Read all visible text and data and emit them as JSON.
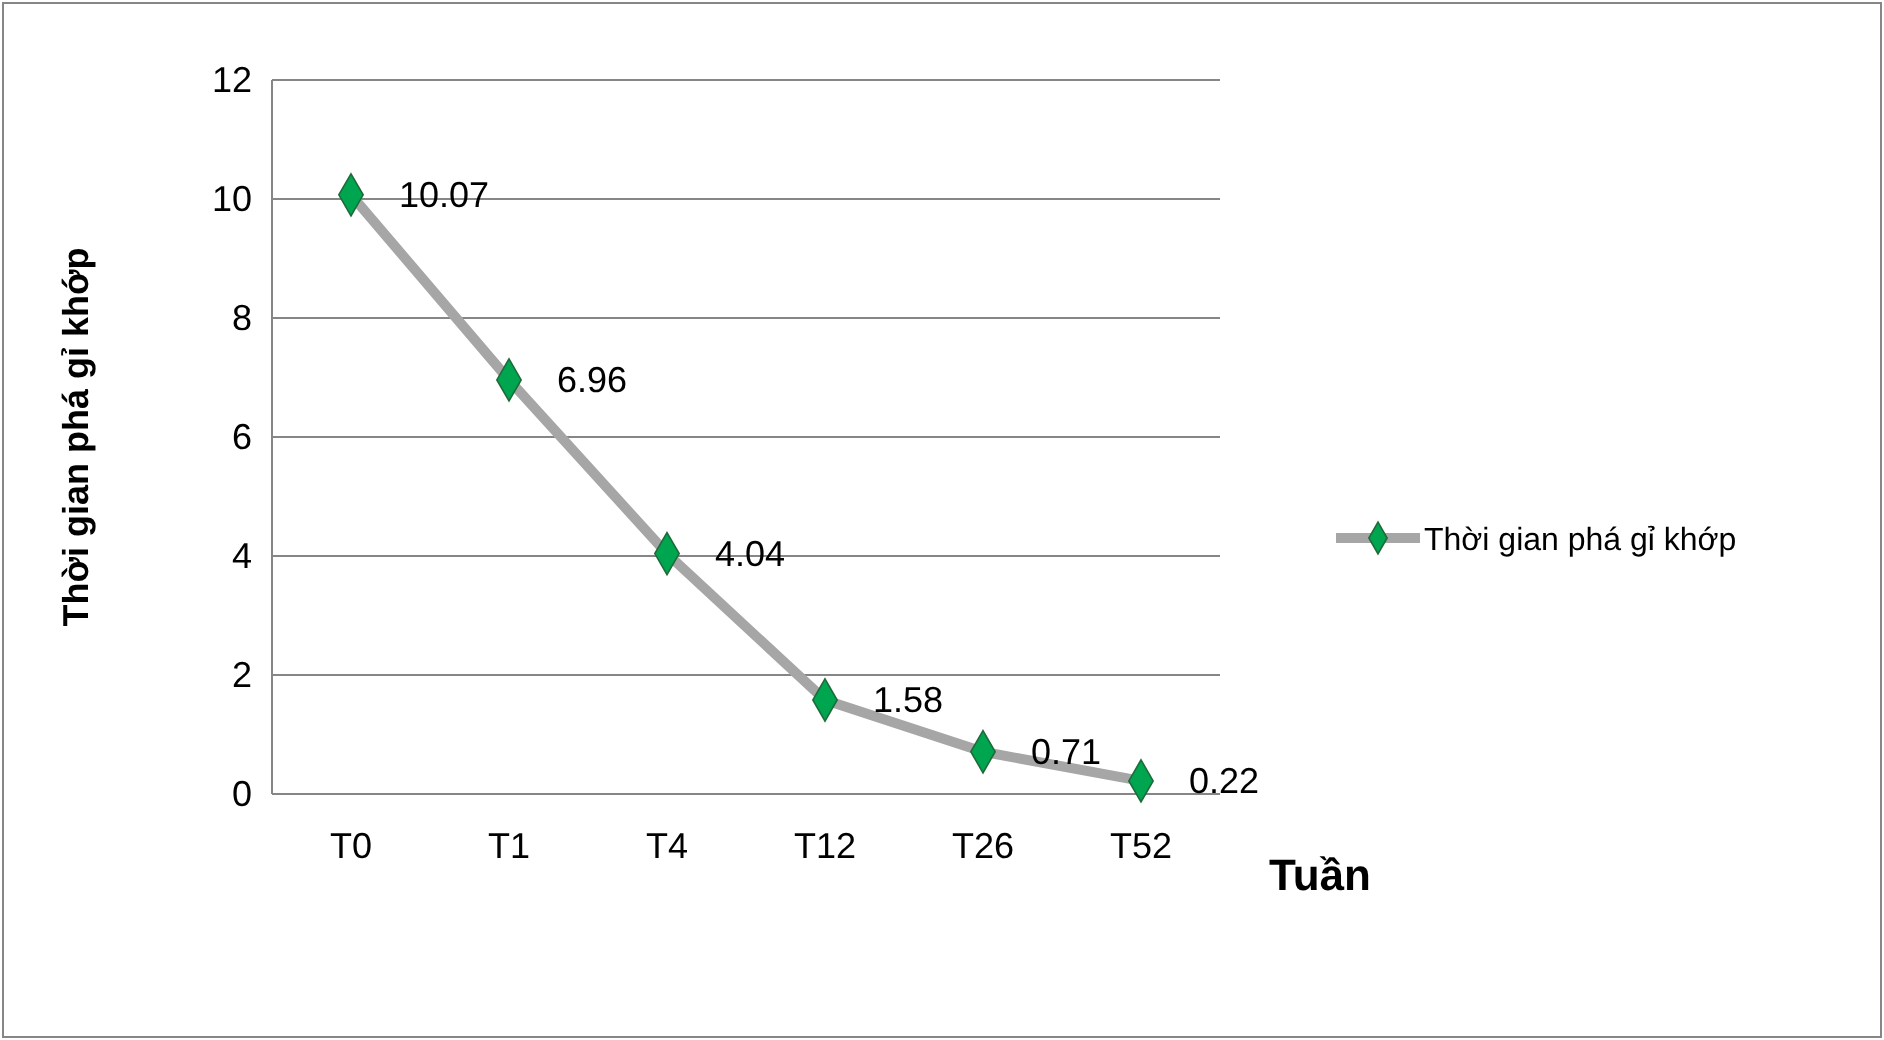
{
  "chart_data": {
    "type": "line",
    "xlabel": "Tuần",
    "ylabel": "Thời gian phá gỉ khớp",
    "categories": [
      "T0",
      "T1",
      "T4",
      "T12",
      "T26",
      "T52"
    ],
    "series": [
      {
        "name": "Thời gian phá gỉ khớp",
        "color": "#a6a6a6",
        "values": [
          10.07,
          6.96,
          4.04,
          1.58,
          0.71,
          0.22
        ]
      }
    ],
    "ylim": [
      0,
      12
    ],
    "yticks": [
      0,
      2,
      4,
      6,
      8,
      10,
      12
    ],
    "grid": "y",
    "legend": "right",
    "marker": "diamond",
    "data_labels": true
  }
}
